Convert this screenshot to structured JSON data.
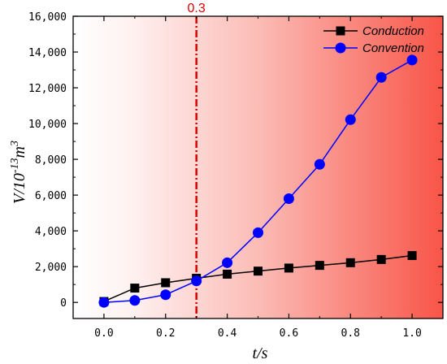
{
  "chart_data": {
    "type": "line",
    "x": [
      0.0,
      0.1,
      0.2,
      0.3,
      0.4,
      0.5,
      0.6,
      0.7,
      0.8,
      0.9,
      1.0
    ],
    "series": [
      {
        "name": "Conduction",
        "values": [
          50,
          800,
          1100,
          1350,
          1580,
          1750,
          1920,
          2070,
          2220,
          2400,
          2620
        ],
        "color": "#000000",
        "marker": "square"
      },
      {
        "name": "Convention",
        "values": [
          0,
          110,
          430,
          1200,
          2220,
          3900,
          5800,
          7720,
          10220,
          12580,
          13550
        ],
        "color": "#0000ff",
        "marker": "circle"
      }
    ],
    "xlabel": "t/s",
    "ylabel": "V/10",
    "ylabel_exp1": "-13",
    "ylabel_mid": "m",
    "ylabel_exp2": "3",
    "xlim": [
      -0.1,
      1.1
    ],
    "ylim": [
      -900,
      16000
    ],
    "xticks": [
      0.0,
      0.2,
      0.4,
      0.6,
      0.8,
      1.0
    ],
    "xtick_labels": [
      "0.0",
      "0.2",
      "0.4",
      "0.6",
      "0.8",
      "1.0"
    ],
    "yticks": [
      0,
      2000,
      4000,
      6000,
      8000,
      10000,
      12000,
      14000,
      16000
    ],
    "ytick_labels": [
      "0",
      "2,000",
      "4,000",
      "6,000",
      "8,000",
      "10,000",
      "12,000",
      "14,000",
      "16,000"
    ],
    "annotation": {
      "x": 0.3,
      "label": "0.3",
      "color": "#dd0000",
      "style": "dash-dot vertical line"
    },
    "background": {
      "style": "horizontal gradient",
      "from_color": "#ffffff",
      "to_color": "#f85548"
    },
    "legend_position": "top-right",
    "grid": false
  }
}
